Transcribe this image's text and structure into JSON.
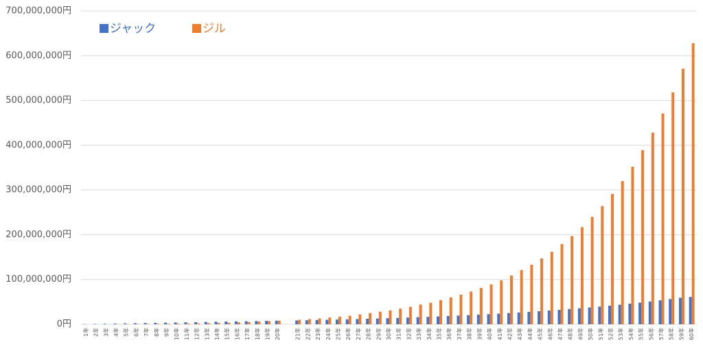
{
  "chart_data": {
    "type": "bar",
    "categories": [
      "1年",
      "2年",
      "3年",
      "4年",
      "5年",
      "6年",
      "7年",
      "8年",
      "9年",
      "10年",
      "11年",
      "12年",
      "13年",
      "14年",
      "15年",
      "16年",
      "17年",
      "18年",
      "19年",
      "20年",
      null,
      "21年",
      "22年",
      "23年",
      "24年",
      "25年",
      "26年",
      "27年",
      "28年",
      "29年",
      "30年",
      "31年",
      "32年",
      "33年",
      "34年",
      "35年",
      "36年",
      "37年",
      "38年",
      "39年",
      "40年",
      "41年",
      "42年",
      "43年",
      "44年",
      "45年",
      "46年",
      "47年",
      "48年",
      "49年",
      "50年",
      "51年",
      "52年",
      "53年",
      "54年",
      "55年",
      "56年",
      "57年",
      "58年",
      "59年",
      "60年"
    ],
    "series": [
      {
        "name": "ジャック",
        "color": "#4472c4",
        "values": [
          400000,
          800000,
          1200000,
          1600000,
          2000000,
          2400000,
          2800000,
          3200000,
          3600000,
          4000000,
          4400000,
          4800000,
          5200000,
          5600000,
          6000000,
          6400000,
          6800000,
          7200000,
          7600000,
          8000000,
          null,
          8500000,
          9000000,
          9500000,
          10000000,
          10500000,
          11000000,
          11600000,
          12200000,
          12800000,
          13500000,
          14200000,
          15000000,
          15800000,
          16600000,
          17500000,
          18400000,
          19400000,
          20400000,
          21500000,
          22600000,
          23800000,
          25000000,
          26300000,
          27700000,
          29100000,
          30600000,
          32200000,
          33900000,
          35700000,
          37500000,
          39500000,
          41500000,
          43700000,
          46000000,
          48400000,
          50900000,
          53500000,
          56300000,
          59200000,
          61000000
        ]
      },
      {
        "name": "ジル",
        "color": "#ed7d31",
        "values": [
          0,
          0,
          0,
          300000,
          500000,
          700000,
          900000,
          1100000,
          1300000,
          1500000,
          1800000,
          2100000,
          2500000,
          3000000,
          3500000,
          4200000,
          5000000,
          6000000,
          7000000,
          8000000,
          null,
          10000000,
          11500000,
          13000000,
          15000000,
          17000000,
          19000000,
          22000000,
          25000000,
          28000000,
          31000000,
          35000000,
          39000000,
          44000000,
          48000000,
          54000000,
          60000000,
          66000000,
          73000000,
          81000000,
          89000000,
          98000000,
          109000000,
          121000000,
          133000000,
          147000000,
          162000000,
          179000000,
          197000000,
          217000000,
          240000000,
          264000000,
          291000000,
          320000000,
          352000000,
          389000000,
          428000000,
          471000000,
          518000000,
          571000000,
          628000000
        ]
      }
    ],
    "ylim": [
      0,
      700000000
    ],
    "yticks": [
      {
        "value": 0,
        "label": "0円"
      },
      {
        "value": 100000000,
        "label": "100,000,000円"
      },
      {
        "value": 200000000,
        "label": "200,000,000円"
      },
      {
        "value": 300000000,
        "label": "300,000,000円"
      },
      {
        "value": 400000000,
        "label": "400,000,000円"
      },
      {
        "value": 500000000,
        "label": "500,000,000円"
      },
      {
        "value": 600000000,
        "label": "600,000,000円"
      },
      {
        "value": 700000000,
        "label": "700,000,000円"
      }
    ],
    "grid": true,
    "legend": "top-left"
  }
}
